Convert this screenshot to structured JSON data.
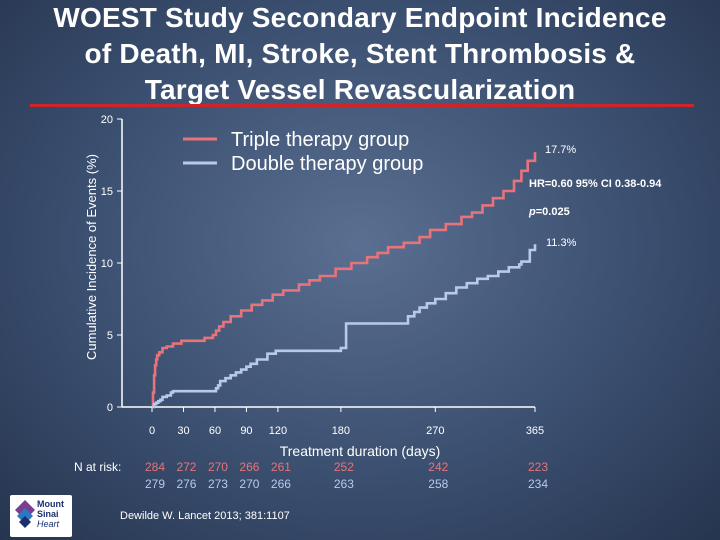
{
  "slide": {
    "title_lines": [
      "WOEST Study Secondary Endpoint Incidence",
      "of Death, MI, Stroke, Stent Thrombosis &",
      "Target Vessel Revascularization"
    ],
    "citation": "Dewilde W. Lancet 2013; 381:1107",
    "logo": {
      "line1": "Mount",
      "line2": "Sinai",
      "line3": "Heart"
    }
  },
  "colors": {
    "triple": "#e8737a",
    "double": "#b9c9ee",
    "title_rule": "#d0242b"
  },
  "chart_data": {
    "type": "line",
    "ylabel": "Cumulative Incidence of Events (%)",
    "xlabel": "Treatment duration (days)",
    "ylim": [
      0,
      20
    ],
    "xlim": [
      0,
      365
    ],
    "y_ticks": [
      0,
      5,
      10,
      15,
      20
    ],
    "x_ticks": [
      0,
      30,
      60,
      90,
      120,
      180,
      270,
      365
    ],
    "legend": [
      "Triple therapy group",
      "Double therapy group"
    ],
    "series": [
      {
        "name": "Triple therapy group",
        "x": [
          0,
          1,
          2,
          3,
          4,
          5,
          7,
          10,
          14,
          20,
          24,
          28,
          30,
          40,
          50,
          58,
          61,
          64,
          68,
          75,
          85,
          95,
          105,
          115,
          125,
          140,
          150,
          160,
          175,
          190,
          205,
          215,
          225,
          240,
          255,
          265,
          280,
          295,
          305,
          315,
          325,
          335,
          345,
          352,
          358,
          365
        ],
        "y": [
          0,
          1.0,
          2.2,
          2.9,
          3.3,
          3.6,
          3.8,
          4.1,
          4.2,
          4.4,
          4.4,
          4.6,
          4.6,
          4.6,
          4.8,
          5.0,
          5.3,
          5.6,
          5.9,
          6.3,
          6.7,
          7.1,
          7.4,
          7.8,
          8.1,
          8.5,
          8.8,
          9.1,
          9.6,
          10.0,
          10.4,
          10.7,
          11.1,
          11.4,
          11.8,
          12.3,
          12.7,
          13.2,
          13.5,
          14.0,
          14.5,
          15.0,
          15.7,
          16.4,
          17.1,
          17.7
        ]
      },
      {
        "name": "Double therapy group",
        "x": [
          0,
          2,
          4,
          6,
          8,
          10,
          14,
          18,
          20,
          40,
          60,
          61,
          63,
          65,
          70,
          75,
          80,
          85,
          90,
          94,
          100,
          110,
          118,
          150,
          180,
          185,
          240,
          244,
          250,
          255,
          262,
          270,
          280,
          290,
          300,
          310,
          320,
          330,
          340,
          350,
          352,
          360,
          365
        ],
        "y": [
          0,
          0.2,
          0.3,
          0.4,
          0.5,
          0.7,
          0.8,
          1.0,
          1.1,
          1.1,
          1.1,
          1.3,
          1.5,
          1.8,
          2.0,
          2.2,
          2.4,
          2.6,
          2.8,
          3.0,
          3.3,
          3.7,
          3.9,
          3.9,
          4.1,
          5.8,
          5.8,
          6.3,
          6.6,
          6.9,
          7.2,
          7.5,
          7.9,
          8.3,
          8.6,
          8.9,
          9.1,
          9.4,
          9.7,
          9.9,
          10.1,
          10.9,
          11.3
        ]
      }
    ],
    "annotations": {
      "triple_end": "17.7%",
      "double_end": "11.3%",
      "hr": "HR=0.60  95%  CI 0.38-0.94",
      "p_label": "p",
      "p_value": "=0.025"
    },
    "n_at_risk": {
      "label": "N at risk:",
      "x": [
        0,
        30,
        60,
        90,
        120,
        180,
        270,
        365
      ],
      "triple": [
        "284",
        "272",
        "270",
        "266",
        "261",
        "252",
        "242",
        "223"
      ],
      "double": [
        "279",
        "276",
        "273",
        "270",
        "266",
        "263",
        "258",
        "234"
      ]
    }
  }
}
